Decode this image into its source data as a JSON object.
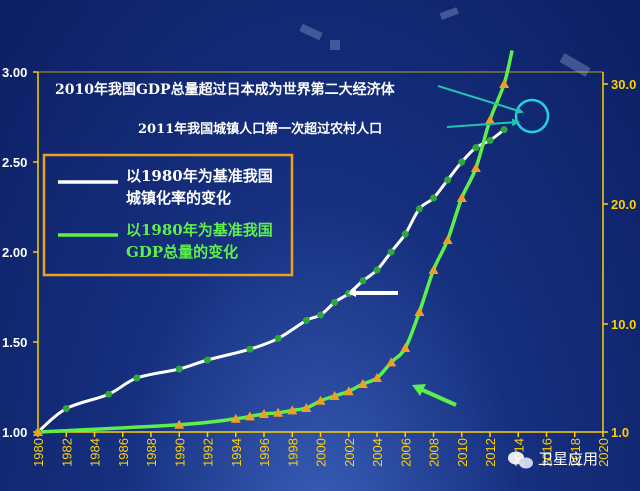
{
  "chart_data": {
    "type": "line",
    "x_range": [
      1980,
      2020
    ],
    "x_ticks": [
      "1980",
      "1982",
      "1984",
      "1986",
      "1988",
      "1990",
      "1992",
      "1994",
      "1996",
      "1998",
      "2000",
      "2002",
      "2004",
      "2006",
      "2008",
      "2010",
      "2012",
      "2014",
      "2016",
      "2018",
      "2020"
    ],
    "y_left": {
      "ylim": [
        1.0,
        3.0
      ],
      "ticks": [
        "1.00",
        "1.50",
        "2.00",
        "2.50",
        "3.00"
      ]
    },
    "y_right": {
      "ylim": [
        1.0,
        31.0
      ],
      "ticks": [
        "1.0",
        "10.0",
        "20.0",
        "30.0"
      ]
    },
    "series": [
      {
        "name": "以1980年为基准我国城镇化率的变化",
        "axis": "left",
        "color": "#ffffff",
        "marker_color": "#2da83a",
        "x": [
          1980,
          1982,
          1985,
          1987,
          1990,
          1992,
          1995,
          1997,
          1999,
          2000,
          2001,
          2002,
          2003,
          2004,
          2005,
          2006,
          2007,
          2008,
          2009,
          2010,
          2011,
          2012,
          2013
        ],
        "y": [
          1.0,
          1.13,
          1.21,
          1.3,
          1.35,
          1.4,
          1.46,
          1.52,
          1.62,
          1.65,
          1.72,
          1.77,
          1.84,
          1.9,
          2.0,
          2.1,
          2.24,
          2.3,
          2.4,
          2.5,
          2.58,
          2.62,
          2.68
        ]
      },
      {
        "name": "以1980年为基准我国GDP总量的变化",
        "axis": "right",
        "color": "#5ef04a",
        "marker_color": "#f0a020",
        "x": [
          1980,
          1990,
          1994,
          1995,
          1996,
          1997,
          1998,
          1999,
          2000,
          2001,
          2002,
          2003,
          2004,
          2005,
          2006,
          2007,
          2008,
          2009,
          2010,
          2011,
          2012,
          2013
        ],
        "y": [
          1.0,
          1.6,
          2.1,
          2.3,
          2.5,
          2.6,
          2.8,
          3.0,
          3.6,
          4.0,
          4.4,
          5.0,
          5.5,
          6.8,
          8.0,
          11.0,
          14.5,
          17.0,
          20.5,
          23.0,
          27.0,
          30.0
        ]
      }
    ],
    "legend": {
      "placement": "upper-left",
      "items": [
        {
          "text_line1": "以1980年为基准我国",
          "text_line2": "城镇化率的变化",
          "color": "#ffffff"
        },
        {
          "text_line1": "以1980年为基准我国",
          "text_line2": "GDP总量的变化",
          "color": "#5ef04a"
        }
      ]
    },
    "annotations": [
      {
        "text": "2010年我国GDP总量超过日本成为世界第二大经济体"
      },
      {
        "text": "2011年我国城镇人口第一次超过农村人口"
      }
    ]
  },
  "watermark": "卫星应用"
}
